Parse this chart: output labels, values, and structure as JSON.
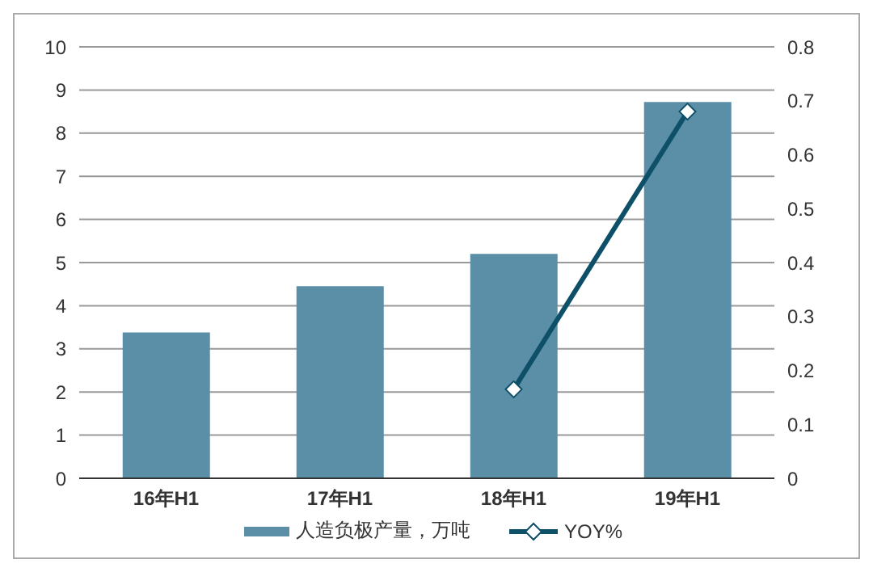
{
  "chart_data": {
    "type": "bar",
    "categories": [
      "16年H1",
      "17年H1",
      "18年H1",
      "19年H1"
    ],
    "series": [
      {
        "name": "人造负极产量，万吨",
        "color": "#5b8fa8",
        "values": [
          3.38,
          4.45,
          5.2,
          8.72
        ]
      },
      {
        "name": "YOY%",
        "type": "line",
        "axis": "y2",
        "color": "#0d5068",
        "values": [
          null,
          null,
          0.165,
          0.68
        ]
      }
    ],
    "ylim": [
      0,
      10
    ],
    "yticks": [
      0,
      1,
      2,
      3,
      4,
      5,
      6,
      7,
      8,
      9,
      10
    ],
    "y2lim": [
      0,
      0.8
    ],
    "y2ticks": [
      0,
      0.1,
      0.2,
      0.3,
      0.4,
      0.5,
      0.6,
      0.7,
      0.8
    ],
    "grid": "y",
    "legend": "bottom",
    "marker": "diamond",
    "line_style": "solid"
  }
}
